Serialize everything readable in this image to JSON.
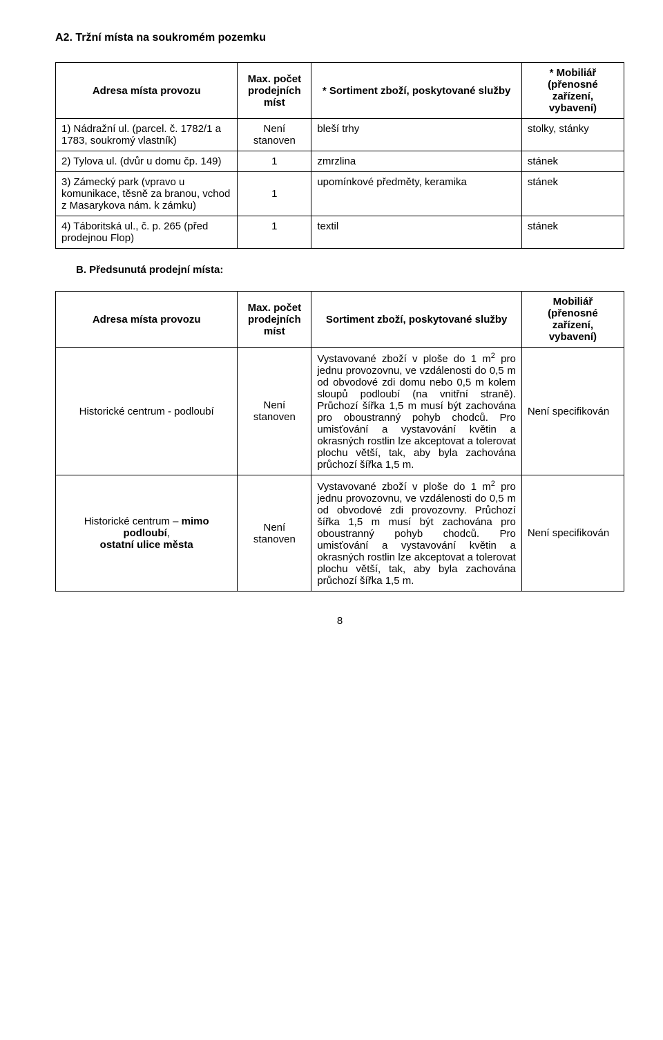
{
  "a2": {
    "heading": "A2. Tržní místa na soukromém pozemku",
    "header": {
      "address": "Adresa místa provozu",
      "count": "Max. počet prodejních míst",
      "sortiment": "* Sortiment zboží, poskytované služby",
      "furniture": "* Mobiliář (přenosné zařízení, vybavení)"
    },
    "rows": {
      "r1": {
        "address": "1) Nádražní ul. (parcel. č. 1782/1 a 1783, soukromý vlastník)",
        "count": "Není stanoven",
        "sortiment": "bleší trhy",
        "furniture": "stolky, stánky"
      },
      "r2": {
        "address": "2) Tylova ul. (dvůr u domu čp. 149)",
        "count": "1",
        "sortiment": "zmrzlina",
        "furniture": "stánek"
      },
      "r3": {
        "address": "3) Zámecký park (vpravo u komunikace, těsně za branou, vchod z Masarykova nám. k zámku)",
        "count": "1",
        "sortiment": "upomínkové předměty, keramika",
        "furniture": "stánek"
      },
      "r4": {
        "address": "4) Táboritská ul., č. p. 265 (před prodejnou Flop)",
        "count": "1",
        "sortiment": "textil",
        "furniture": "stánek"
      }
    }
  },
  "b": {
    "heading": "B. Předsunutá prodejní místa:",
    "header": {
      "address": "Adresa místa provozu",
      "count": "Max. počet prodejních míst",
      "sortiment": "Sortiment zboží, poskytované služby",
      "furniture": "Mobiliář (přenosné zařízení, vybavení)"
    },
    "rows": {
      "r1": {
        "address": "Historické centrum - podloubí",
        "count": "Není stanoven",
        "sortiment_pre": "Vystavované zboží v ploše do 1 m",
        "sortiment_post": " pro jednu provozovnu, ve vzdálenosti do 0,5 m od obvodové zdi domu nebo 0,5 m kolem sloupů podloubí (na vnitřní straně). Průchozí šířka 1,5 m musí být zachována pro oboustranný pohyb chodců. Pro umisťování a vystavování květin a okrasných rostlin lze akceptovat a tolerovat plochu větší, tak, aby byla zachována průchozí šířka 1,5 m.",
        "furniture": "Není specifikován"
      },
      "r2": {
        "address_html": "Historické centrum – <b>mimo podloubí</b>,<br><b>ostatní ulice města</b>",
        "count": "Není stanoven",
        "sortiment_pre": "Vystavované zboží v ploše do 1 m",
        "sortiment_post": " pro jednu provozovnu, ve vzdálenosti do 0,5 m od obvodové zdi provozovny. Průchozí šířka 1,5 m musí být zachována pro oboustranný pohyb chodců. Pro umisťování a vystavování květin a okrasných rostlin lze akceptovat a tolerovat plochu větší, tak, aby byla zachována průchozí šířka 1,5 m.",
        "furniture": "Není specifikován"
      }
    }
  },
  "page_number": "8"
}
